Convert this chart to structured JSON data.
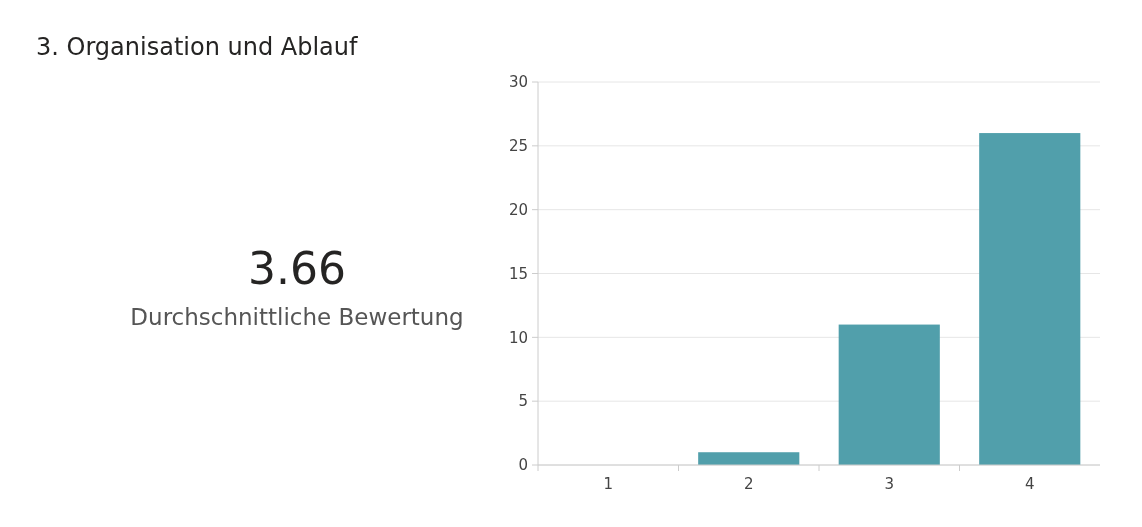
{
  "chart_data": {
    "type": "bar",
    "title": "3.  Organisation und Ablauf",
    "annotations": [
      "3.66",
      "Durchschnittliche Bewertung"
    ],
    "categories": [
      "1",
      "2",
      "3",
      "4"
    ],
    "values": [
      0,
      1,
      11,
      26
    ],
    "color": "#519fab",
    "ylim": [
      0,
      30
    ],
    "yticks": [
      0,
      5,
      10,
      15,
      20,
      25,
      30
    ],
    "grid": "y"
  }
}
